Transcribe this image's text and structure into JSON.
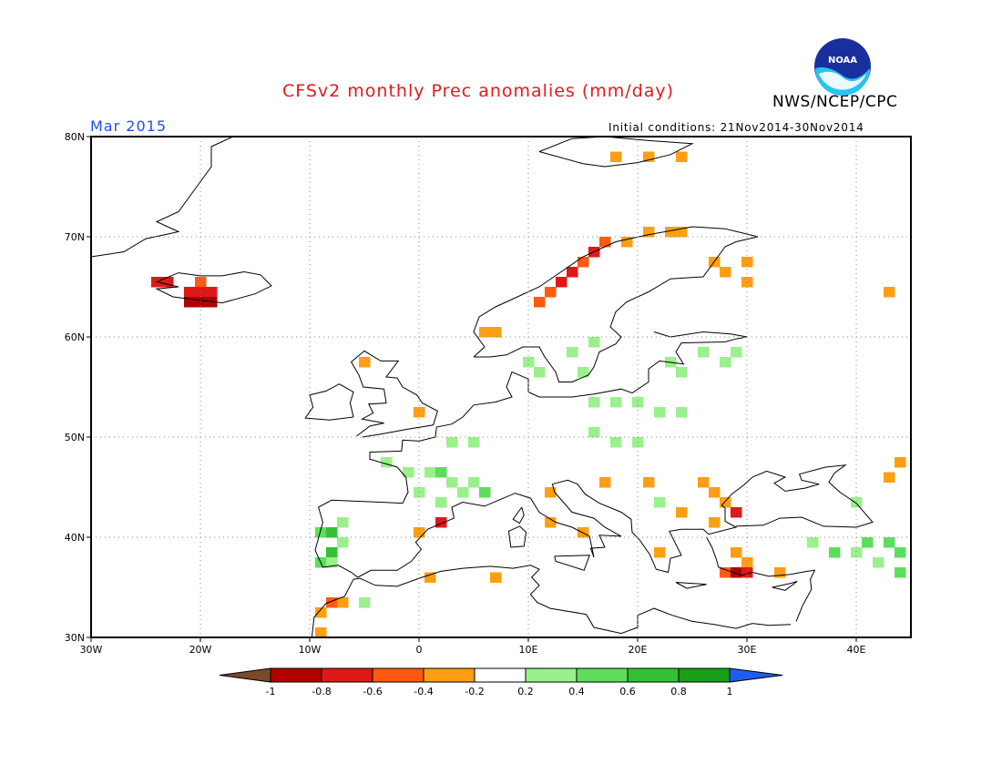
{
  "title": "CFSv2 monthly Prec anomalies (mm/day)",
  "agency": "NWS/NCEP/CPC",
  "logo_text": "NOAA",
  "month_label": "Mar 2015",
  "initial_conditions": "Initial conditions: 21Nov2014-30Nov2014",
  "map": {
    "region": "Europe",
    "lon_range": [
      -30,
      45
    ],
    "lat_range": [
      30,
      80
    ],
    "lat_labels": [
      "80N",
      "70N",
      "60N",
      "50N",
      "40N",
      "30N"
    ],
    "lon_labels": [
      "30W",
      "20W",
      "10W",
      "0",
      "10E",
      "20E",
      "30E",
      "40E"
    ],
    "grid": "dotted"
  },
  "colorbar": {
    "labels": [
      "-1",
      "-0.8",
      "-0.6",
      "-0.4",
      "-0.2",
      "0.2",
      "0.4",
      "0.6",
      "0.8",
      "1"
    ],
    "colors": [
      "#7a4a2a",
      "#b00000",
      "#e01818",
      "#ff5a10",
      "#ff9e12",
      "#ffffff",
      "#9af08c",
      "#5cde5c",
      "#33c233",
      "#1a9e1a",
      "#1e5eef"
    ]
  },
  "anomalies": [
    {
      "lon": -24,
      "lat": 65.5,
      "v": -0.7
    },
    {
      "lon": -23,
      "lat": 65.5,
      "v": -0.7
    },
    {
      "lon": -21,
      "lat": 64.5,
      "v": -0.7
    },
    {
      "lon": -20,
      "lat": 65.5,
      "v": -0.4
    },
    {
      "lon": -20,
      "lat": 64.5,
      "v": -0.6
    },
    {
      "lon": -19,
      "lat": 64.5,
      "v": -0.6
    },
    {
      "lon": -20,
      "lat": 63.5,
      "v": -0.8
    },
    {
      "lon": -19,
      "lat": 63.5,
      "v": -0.8
    },
    {
      "lon": -21,
      "lat": 63.5,
      "v": -0.8
    },
    {
      "lon": 6,
      "lat": 60.5,
      "v": -0.3
    },
    {
      "lon": 7,
      "lat": 60.5,
      "v": -0.3
    },
    {
      "lon": 11,
      "lat": 63.5,
      "v": -0.5
    },
    {
      "lon": 12,
      "lat": 64.5,
      "v": -0.5
    },
    {
      "lon": 13,
      "lat": 65.5,
      "v": -0.6
    },
    {
      "lon": 14,
      "lat": 66.5,
      "v": -0.6
    },
    {
      "lon": 15,
      "lat": 67.5,
      "v": -0.5
    },
    {
      "lon": 16,
      "lat": 68.5,
      "v": -0.7
    },
    {
      "lon": 17,
      "lat": 69.5,
      "v": -0.5
    },
    {
      "lon": 19,
      "lat": 69.5,
      "v": -0.3
    },
    {
      "lon": 21,
      "lat": 70.5,
      "v": -0.3
    },
    {
      "lon": 23,
      "lat": 70.5,
      "v": -0.3
    },
    {
      "lon": 24,
      "lat": 70.5,
      "v": -0.3
    },
    {
      "lon": 27,
      "lat": 67.5,
      "v": -0.3
    },
    {
      "lon": 28,
      "lat": 66.5,
      "v": -0.3
    },
    {
      "lon": 30,
      "lat": 67.5,
      "v": -0.3
    },
    {
      "lon": 30,
      "lat": 65.5,
      "v": -0.3
    },
    {
      "lon": 43,
      "lat": 64.5,
      "v": -0.3
    },
    {
      "lon": 18,
      "lat": 78,
      "v": -0.3
    },
    {
      "lon": 21,
      "lat": 78,
      "v": -0.3
    },
    {
      "lon": 24,
      "lat": 78,
      "v": -0.3
    },
    {
      "lon": -5,
      "lat": 57.5,
      "v": -0.3
    },
    {
      "lon": 0,
      "lat": 52.5,
      "v": -0.3
    },
    {
      "lon": 12,
      "lat": 44.5,
      "v": -0.3
    },
    {
      "lon": 17,
      "lat": 45.5,
      "v": -0.3
    },
    {
      "lon": 21,
      "lat": 45.5,
      "v": -0.3
    },
    {
      "lon": 26,
      "lat": 45.5,
      "v": -0.3
    },
    {
      "lon": 27,
      "lat": 44.5,
      "v": -0.3
    },
    {
      "lon": 24,
      "lat": 42.5,
      "v": -0.3
    },
    {
      "lon": 28,
      "lat": 43.5,
      "v": -0.3
    },
    {
      "lon": 29,
      "lat": 42.5,
      "v": -0.6
    },
    {
      "lon": 27,
      "lat": 41.5,
      "v": -0.3
    },
    {
      "lon": 12,
      "lat": 41.5,
      "v": -0.3
    },
    {
      "lon": 15,
      "lat": 40.5,
      "v": -0.3
    },
    {
      "lon": 22,
      "lat": 38.5,
      "v": -0.3
    },
    {
      "lon": 29,
      "lat": 38.5,
      "v": -0.3
    },
    {
      "lon": 30,
      "lat": 37.5,
      "v": -0.3
    },
    {
      "lon": 28,
      "lat": 36.5,
      "v": -0.5
    },
    {
      "lon": 29,
      "lat": 36.5,
      "v": -0.8
    },
    {
      "lon": 30,
      "lat": 36.5,
      "v": -0.6
    },
    {
      "lon": 33,
      "lat": 36.5,
      "v": -0.3
    },
    {
      "lon": 43,
      "lat": 46,
      "v": -0.3
    },
    {
      "lon": 44,
      "lat": 47.5,
      "v": -0.3
    },
    {
      "lon": 0,
      "lat": 40.5,
      "v": -0.3
    },
    {
      "lon": 2,
      "lat": 41.5,
      "v": -0.7
    },
    {
      "lon": 1,
      "lat": 36,
      "v": -0.3
    },
    {
      "lon": 7,
      "lat": 36,
      "v": -0.3
    },
    {
      "lon": -9,
      "lat": 30.5,
      "v": -0.3
    },
    {
      "lon": -9,
      "lat": 32.5,
      "v": -0.3
    },
    {
      "lon": -8,
      "lat": 33.5,
      "v": -0.5
    },
    {
      "lon": -7,
      "lat": 33.5,
      "v": -0.3
    },
    {
      "lon": 10,
      "lat": 57.5,
      "v": 0.3
    },
    {
      "lon": 11,
      "lat": 56.5,
      "v": 0.3
    },
    {
      "lon": 14,
      "lat": 58.5,
      "v": 0.3
    },
    {
      "lon": 15,
      "lat": 56.5,
      "v": 0.3
    },
    {
      "lon": 16,
      "lat": 59.5,
      "v": 0.3
    },
    {
      "lon": 23,
      "lat": 57.5,
      "v": 0.3
    },
    {
      "lon": 24,
      "lat": 56.5,
      "v": 0.3
    },
    {
      "lon": 26,
      "lat": 58.5,
      "v": 0.3
    },
    {
      "lon": 28,
      "lat": 57.5,
      "v": 0.3
    },
    {
      "lon": 29,
      "lat": 58.5,
      "v": 0.3
    },
    {
      "lon": 16,
      "lat": 53.5,
      "v": 0.3
    },
    {
      "lon": 18,
      "lat": 53.5,
      "v": 0.3
    },
    {
      "lon": 20,
      "lat": 53.5,
      "v": 0.3
    },
    {
      "lon": 22,
      "lat": 52.5,
      "v": 0.3
    },
    {
      "lon": 24,
      "lat": 52.5,
      "v": 0.3
    },
    {
      "lon": 16,
      "lat": 50.5,
      "v": 0.3
    },
    {
      "lon": 18,
      "lat": 49.5,
      "v": 0.3
    },
    {
      "lon": 20,
      "lat": 49.5,
      "v": 0.3
    },
    {
      "lon": 3,
      "lat": 49.5,
      "v": 0.3
    },
    {
      "lon": 5,
      "lat": 49.5,
      "v": 0.3
    },
    {
      "lon": -3,
      "lat": 47.5,
      "v": 0.3
    },
    {
      "lon": -1,
      "lat": 46.5,
      "v": 0.3
    },
    {
      "lon": 1,
      "lat": 46.5,
      "v": 0.3
    },
    {
      "lon": 2,
      "lat": 46.5,
      "v": 0.5
    },
    {
      "lon": 3,
      "lat": 45.5,
      "v": 0.3
    },
    {
      "lon": 5,
      "lat": 45.5,
      "v": 0.3
    },
    {
      "lon": 0,
      "lat": 44.5,
      "v": 0.3
    },
    {
      "lon": 6,
      "lat": 44.5,
      "v": 0.5
    },
    {
      "lon": 2,
      "lat": 43.5,
      "v": 0.3
    },
    {
      "lon": 4,
      "lat": 44.5,
      "v": 0.3
    },
    {
      "lon": 22,
      "lat": 43.5,
      "v": 0.3
    },
    {
      "lon": 40,
      "lat": 43.5,
      "v": 0.3
    },
    {
      "lon": -7,
      "lat": 41.5,
      "v": 0.3
    },
    {
      "lon": -9,
      "lat": 40.5,
      "v": 0.5
    },
    {
      "lon": -8,
      "lat": 40.5,
      "v": 0.7
    },
    {
      "lon": -7,
      "lat": 39.5,
      "v": 0.3
    },
    {
      "lon": -8,
      "lat": 38.5,
      "v": 0.7
    },
    {
      "lon": -9,
      "lat": 37.5,
      "v": 0.5
    },
    {
      "lon": -8,
      "lat": 37.5,
      "v": 0.3
    },
    {
      "lon": -5,
      "lat": 33.5,
      "v": 0.3
    },
    {
      "lon": 36,
      "lat": 39.5,
      "v": 0.3
    },
    {
      "lon": 38,
      "lat": 38.5,
      "v": 0.5
    },
    {
      "lon": 40,
      "lat": 38.5,
      "v": 0.3
    },
    {
      "lon": 41,
      "lat": 39.5,
      "v": 0.5
    },
    {
      "lon": 43,
      "lat": 39.5,
      "v": 0.5
    },
    {
      "lon": 44,
      "lat": 38.5,
      "v": 0.5
    },
    {
      "lon": 42,
      "lat": 37.5,
      "v": 0.3
    },
    {
      "lon": 44,
      "lat": 36.5,
      "v": 0.5
    }
  ]
}
